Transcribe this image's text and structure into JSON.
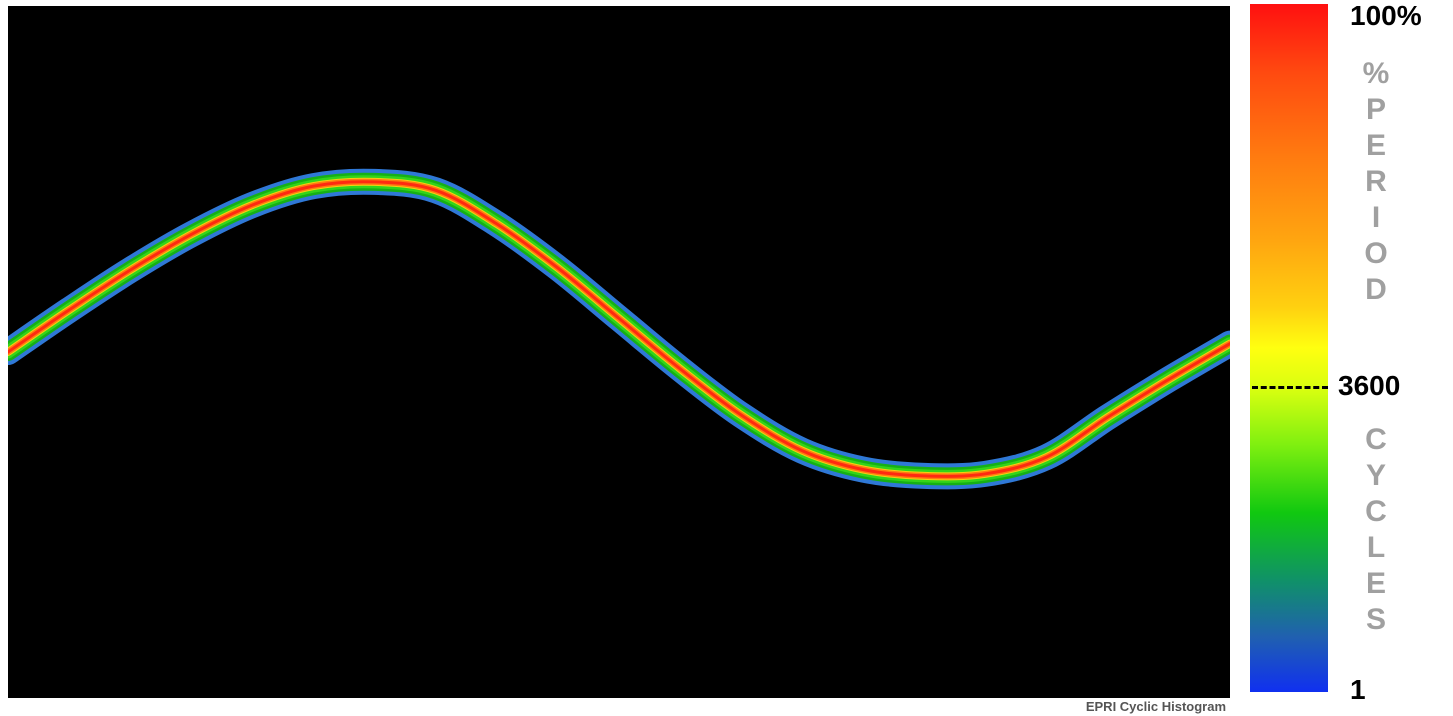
{
  "chart_data": {
    "type": "line",
    "title": "",
    "xlabel": "",
    "ylabel": "",
    "watermark": "EPRI Cyclic Histogram",
    "series": [
      {
        "x": [
          0,
          0.05,
          0.1,
          0.15,
          0.2,
          0.25,
          0.3,
          0.35,
          0.4,
          0.45,
          0.5,
          0.55,
          0.6,
          0.65,
          0.7,
          0.75,
          0.8,
          0.85,
          0.9,
          0.95,
          1.0
        ],
        "values": [
          0.0,
          0.2,
          0.39,
          0.56,
          0.7,
          0.79,
          0.81,
          0.77,
          0.61,
          0.4,
          0.16,
          -0.08,
          -0.3,
          -0.47,
          -0.56,
          -0.59,
          -0.58,
          -0.5,
          -0.31,
          -0.13,
          0.04
        ]
      }
    ],
    "colorbar": {
      "top_label": "100%",
      "middle_label": "3600",
      "bottom_label": "1",
      "upper_text": "%PERIOD",
      "lower_text": "CYCLES",
      "colors": [
        "#ff1010",
        "#ff7a10",
        "#ffd010",
        "#ffff10",
        "#80f010",
        "#10c810",
        "#10906a",
        "#2060b0",
        "#1030f0"
      ]
    }
  }
}
